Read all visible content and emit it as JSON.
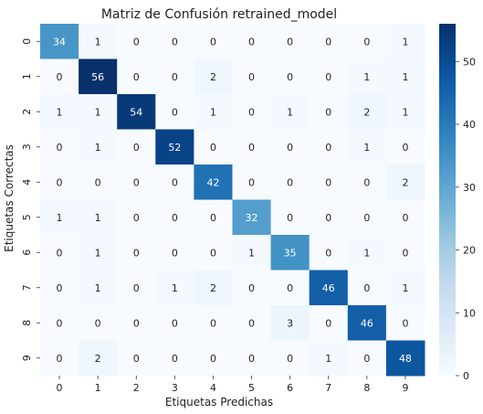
{
  "chart_data": {
    "type": "heatmap",
    "title": "Matriz de Confusión retrained_model",
    "xlabel": "Etiquetas Predichas",
    "ylabel": "Etiquetas Correctas",
    "x_categories": [
      "0",
      "1",
      "2",
      "3",
      "4",
      "5",
      "6",
      "7",
      "8",
      "9"
    ],
    "y_categories": [
      "0",
      "1",
      "2",
      "3",
      "4",
      "5",
      "6",
      "7",
      "8",
      "9"
    ],
    "matrix": [
      [
        34,
        1,
        0,
        0,
        0,
        0,
        0,
        0,
        0,
        1
      ],
      [
        0,
        56,
        0,
        0,
        2,
        0,
        0,
        0,
        1,
        1
      ],
      [
        1,
        1,
        54,
        0,
        1,
        0,
        1,
        0,
        2,
        1
      ],
      [
        0,
        1,
        0,
        52,
        0,
        0,
        0,
        0,
        1,
        0
      ],
      [
        0,
        0,
        0,
        0,
        42,
        0,
        0,
        0,
        0,
        2
      ],
      [
        1,
        1,
        0,
        0,
        0,
        32,
        0,
        0,
        0,
        0
      ],
      [
        0,
        1,
        0,
        0,
        0,
        1,
        35,
        0,
        1,
        0
      ],
      [
        0,
        1,
        0,
        1,
        2,
        0,
        0,
        46,
        0,
        1
      ],
      [
        0,
        0,
        0,
        0,
        0,
        0,
        3,
        0,
        46,
        0
      ],
      [
        0,
        2,
        0,
        0,
        0,
        0,
        0,
        1,
        0,
        48
      ]
    ],
    "colormap": "Blues",
    "colorbar_ticks": [
      0,
      10,
      20,
      30,
      40,
      50
    ],
    "vmin": 0,
    "vmax": 56,
    "colors": {
      "low": "#f7fbff",
      "high": "#08306b",
      "text_dark": "#262626",
      "text_light": "#ffffff"
    }
  }
}
